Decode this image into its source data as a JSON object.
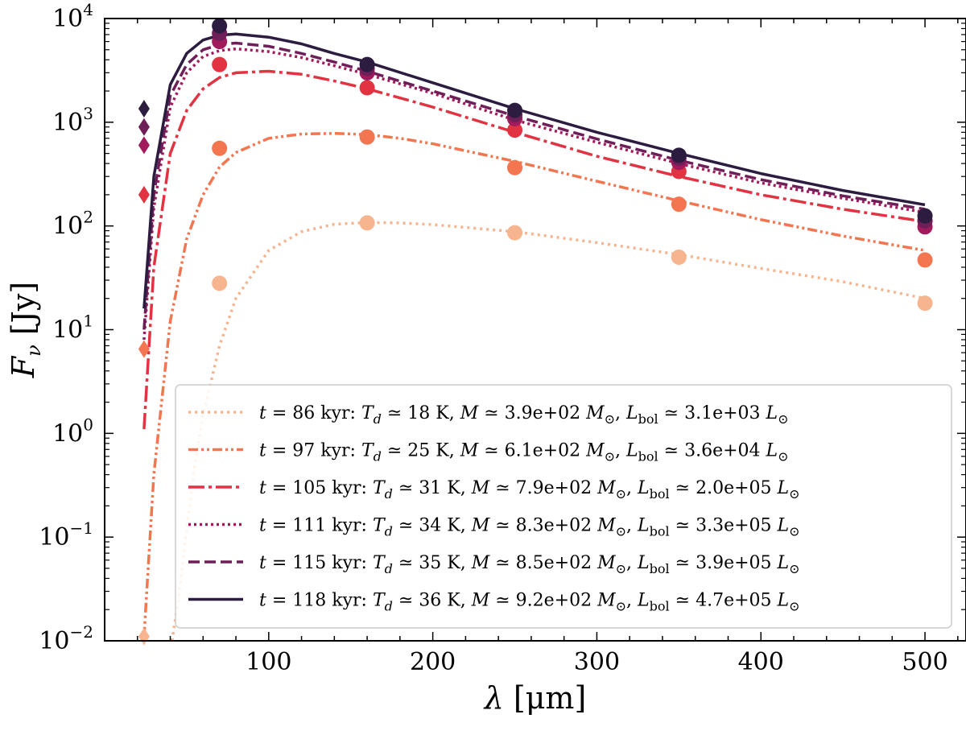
{
  "chart_data": {
    "type": "line",
    "xlabel": "λ [μm]",
    "ylabel": "F_ν [Jy]",
    "ylabel_parts": {
      "main": "F",
      "sub": "ν",
      "unit": "[Jy]"
    },
    "xlabel_parts": {
      "main": "λ",
      "unit": "[μm]"
    },
    "xlim": [
      0,
      525
    ],
    "ylim": [
      0.01,
      10000
    ],
    "yscale": "log",
    "x_ticks": [
      100,
      200,
      300,
      400,
      500
    ],
    "y_ticks": [
      {
        "value": 0.01,
        "base": "10",
        "exp": "−2"
      },
      {
        "value": 0.1,
        "base": "10",
        "exp": "−1"
      },
      {
        "value": 1,
        "base": "10",
        "exp": "0"
      },
      {
        "value": 10,
        "base": "10",
        "exp": "1"
      },
      {
        "value": 100,
        "base": "10",
        "exp": "2"
      },
      {
        "value": 1000,
        "base": "10",
        "exp": "3"
      },
      {
        "value": 10000,
        "base": "10",
        "exp": "4"
      }
    ],
    "grid": false,
    "legend_position": "lower-right",
    "series": [
      {
        "label": {
          "t": "86",
          "Td": "18",
          "M": "3.9e+02",
          "L": "3.1e+03"
        },
        "color": "#f6b48f",
        "dash": "3,5",
        "width": 3.5,
        "curve_x": [
          41,
          45,
          50,
          55,
          60,
          70,
          80,
          100,
          120,
          140,
          160,
          180,
          200,
          250,
          300,
          350,
          400,
          450,
          500
        ],
        "curve_y": [
          0.01,
          0.025,
          0.12,
          0.5,
          1.5,
          7,
          20,
          58,
          88,
          104,
          108,
          107,
          103,
          88,
          69,
          53,
          39,
          29,
          20
        ],
        "points_x": [
          70,
          160,
          250,
          350,
          500
        ],
        "points_y": [
          28,
          107,
          86,
          50,
          18
        ],
        "diamond_x": 24,
        "diamond_y": 0.011
      },
      {
        "label": {
          "t": "97",
          "Td": "25",
          "M": "6.1e+02",
          "L": "3.6e+04"
        },
        "color": "#f37651",
        "dash": "12,4,3,4,3,4",
        "width": 3.5,
        "curve_x": [
          24,
          30,
          40,
          50,
          60,
          70,
          80,
          100,
          120,
          140,
          160,
          180,
          200,
          250,
          300,
          350,
          400,
          450,
          500
        ],
        "curve_y": [
          0.011,
          0.4,
          12,
          75,
          200,
          370,
          510,
          700,
          770,
          780,
          760,
          700,
          620,
          420,
          270,
          175,
          115,
          80,
          58
        ],
        "points_x": [
          70,
          160,
          250,
          350,
          500
        ],
        "points_y": [
          560,
          720,
          365,
          162,
          47
        ],
        "diamond_x": 24,
        "diamond_y": 6.5
      },
      {
        "label": {
          "t": "105",
          "Td": "31",
          "M": "7.9e+02",
          "L": "2.0e+05"
        },
        "color": "#e13342",
        "dash": "20,5,4,5",
        "width": 3.5,
        "curve_x": [
          24,
          30,
          40,
          50,
          60,
          70,
          80,
          100,
          120,
          140,
          160,
          200,
          250,
          300,
          350,
          400,
          450,
          500
        ],
        "curve_y": [
          1.1,
          40,
          500,
          1300,
          2100,
          2700,
          3000,
          3100,
          2900,
          2500,
          2100,
          1400,
          800,
          470,
          300,
          200,
          145,
          110
        ],
        "points_x": [
          70,
          160,
          250,
          350,
          500
        ],
        "points_y": [
          3600,
          2150,
          840,
          335,
          112
        ],
        "diamond_x": 24,
        "diamond_y": 200
      },
      {
        "label": {
          "t": "111",
          "Td": "34",
          "M": "8.3e+02",
          "L": "3.3e+05"
        },
        "color": "#a11a5b",
        "dash": "3,4",
        "width": 3.5,
        "curve_x": [
          24,
          30,
          40,
          50,
          60,
          70,
          80,
          100,
          120,
          140,
          160,
          200,
          250,
          300,
          350,
          400,
          450,
          500
        ],
        "curve_y": [
          8,
          150,
          1400,
          3000,
          4300,
          4900,
          5100,
          4800,
          4200,
          3500,
          2900,
          1900,
          1050,
          640,
          400,
          260,
          185,
          135
        ],
        "points_x": [
          70,
          160,
          250,
          350,
          500
        ],
        "points_y": [
          6000,
          3000,
          1080,
          410,
          98
        ],
        "diamond_x": 24,
        "diamond_y": 600
      },
      {
        "label": {
          "t": "115",
          "Td": "35",
          "M": "8.5e+02",
          "L": "3.9e+05"
        },
        "color": "#6e1f57",
        "dash": "14,6",
        "width": 3.5,
        "curve_x": [
          24,
          30,
          40,
          50,
          60,
          70,
          80,
          100,
          120,
          140,
          160,
          200,
          250,
          300,
          350,
          400,
          450,
          500
        ],
        "curve_y": [
          10,
          200,
          1800,
          3600,
          5000,
          5600,
          5800,
          5400,
          4600,
          3800,
          3100,
          2000,
          1150,
          690,
          430,
          280,
          195,
          145
        ],
        "points_x": [
          70,
          160,
          250,
          350,
          500
        ],
        "points_y": [
          7200,
          3300,
          1180,
          450,
          112
        ],
        "diamond_x": 24,
        "diamond_y": 900
      },
      {
        "label": {
          "t": "118",
          "Td": "36",
          "M": "9.2e+02",
          "L": "4.7e+05"
        },
        "color": "#2b1c40",
        "dash": "",
        "width": 3.5,
        "curve_x": [
          24,
          30,
          40,
          50,
          60,
          70,
          80,
          100,
          120,
          140,
          160,
          200,
          250,
          300,
          350,
          400,
          450,
          500
        ],
        "curve_y": [
          16,
          300,
          2300,
          4600,
          6200,
          6900,
          7100,
          6600,
          5700,
          4600,
          3800,
          2400,
          1350,
          800,
          500,
          320,
          220,
          160
        ],
        "points_x": [
          70,
          160,
          250,
          350,
          500
        ],
        "points_y": [
          8500,
          3600,
          1300,
          480,
          125
        ],
        "diamond_x": 24,
        "diamond_y": 1350
      }
    ]
  }
}
